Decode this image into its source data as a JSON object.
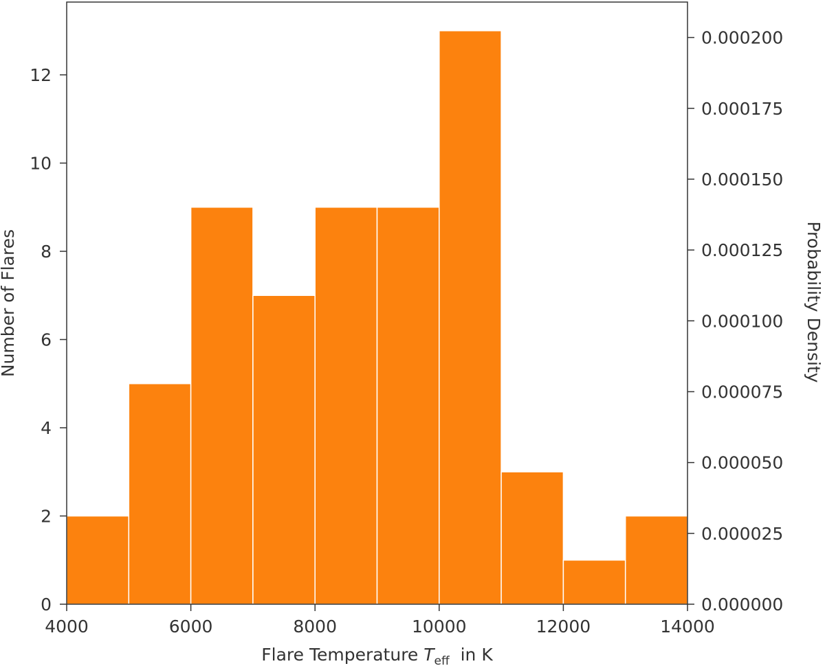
{
  "chart_data": {
    "type": "bar",
    "histogram": true,
    "bin_edges": [
      4000,
      5000,
      6000,
      7000,
      8000,
      9000,
      10000,
      11000,
      12000,
      13000,
      14000
    ],
    "values": [
      2,
      5,
      9,
      7,
      9,
      9,
      13,
      3,
      1,
      2
    ],
    "bar_color": "#fc820e",
    "xlim": [
      4000,
      14000
    ],
    "ylim": [
      0,
      13.65
    ],
    "y2lim": [
      0,
      0.0002125
    ],
    "x_ticks": [
      4000,
      6000,
      8000,
      10000,
      12000,
      14000
    ],
    "y_ticks": [
      0,
      2,
      4,
      6,
      8,
      10,
      12
    ],
    "y2_ticks": [
      0,
      2.5e-05,
      5e-05,
      7.5e-05,
      0.0001,
      0.000125,
      0.00015,
      0.000175,
      0.0002
    ],
    "x_tick_labels": [
      "4000",
      "6000",
      "8000",
      "10000",
      "12000",
      "14000"
    ],
    "y_tick_labels": [
      "0",
      "2",
      "4",
      "6",
      "8",
      "10",
      "12"
    ],
    "y2_tick_labels": [
      "0.000000",
      "0.000025",
      "0.000050",
      "0.000075",
      "0.000100",
      "0.000125",
      "0.000150",
      "0.000175",
      "0.000200"
    ],
    "xlabel": {
      "prefix": "Flare Temperature ",
      "symbol": "T",
      "subscript": "eff",
      "suffix": "  in K"
    },
    "ylabel": "Number of Flares",
    "y2label": "Probability Density",
    "grid": false
  }
}
